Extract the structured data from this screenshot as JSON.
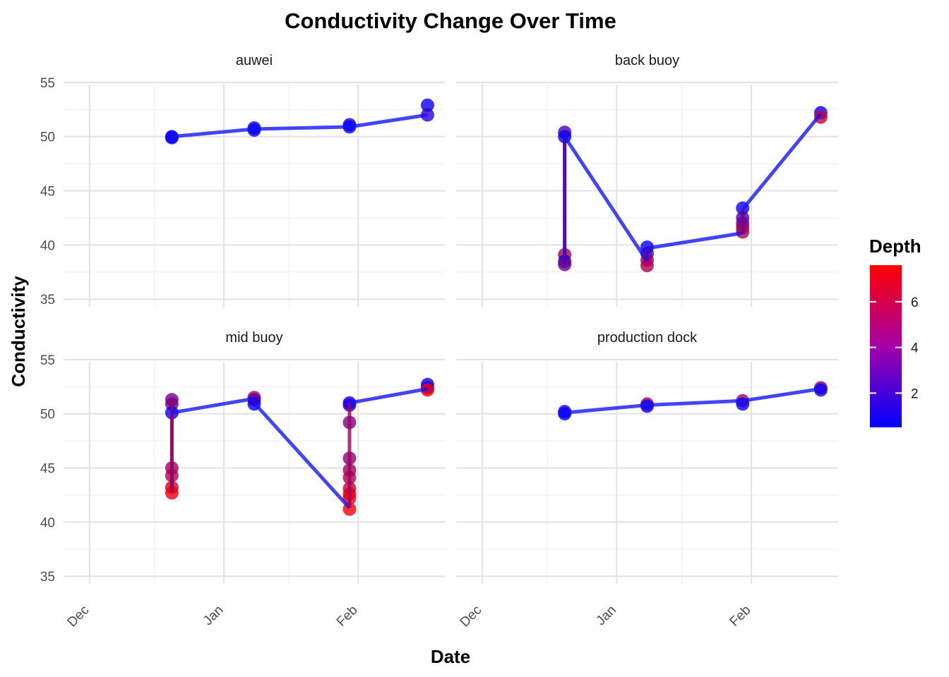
{
  "chart_data": {
    "type": "line",
    "title": "Conductivity Change Over Time",
    "xlabel": "Date",
    "ylabel": "Conductivity",
    "x_ticks": [
      "Dec",
      "Jan",
      "Feb"
    ],
    "y_ticks": [
      35,
      40,
      45,
      50,
      55
    ],
    "ylim": [
      34.3,
      56.1
    ],
    "xlim": [
      "2023-11-25",
      "2024-02-21"
    ],
    "grid": true,
    "color_scale": {
      "name": "Depth",
      "low_color": "#0000ff",
      "high_color": "#ff0000",
      "range": [
        0.5,
        7.6
      ],
      "ticks": [
        2,
        4,
        6
      ]
    },
    "panels": [
      {
        "name": "auwei",
        "line": [
          {
            "date": "2023-12-20",
            "value": 50.0
          },
          {
            "date": "2024-01-08",
            "value": 50.7
          },
          {
            "date": "2024-01-30",
            "value": 50.9
          },
          {
            "date": "2024-02-17",
            "value": 52.0
          }
        ],
        "points": [
          {
            "date": "2023-12-20",
            "value": 50.0,
            "depth": 0.7
          },
          {
            "date": "2023-12-20",
            "value": 49.9,
            "depth": 0.6
          },
          {
            "date": "2024-01-08",
            "value": 50.8,
            "depth": 0.9
          },
          {
            "date": "2024-01-08",
            "value": 50.6,
            "depth": 0.7
          },
          {
            "date": "2024-01-30",
            "value": 51.1,
            "depth": 1.2
          },
          {
            "date": "2024-01-30",
            "value": 50.9,
            "depth": 0.7
          },
          {
            "date": "2024-02-17",
            "value": 52.9,
            "depth": 0.9
          },
          {
            "date": "2024-02-17",
            "value": 52.0,
            "depth": 1.8
          }
        ]
      },
      {
        "name": "back buoy",
        "line": [
          {
            "date": "2023-12-20",
            "value": 50.0
          },
          {
            "date": "2023-12-20",
            "value": 38.3
          },
          {
            "date": "2023-12-20",
            "value": 50.0
          },
          {
            "date": "2024-01-08",
            "value": 38.5
          },
          {
            "date": "2024-01-08",
            "value": 39.7
          },
          {
            "date": "2024-01-30",
            "value": 41.1
          },
          {
            "date": "2024-01-30",
            "value": 43.3
          },
          {
            "date": "2024-02-17",
            "value": 52.1
          }
        ],
        "points": [
          {
            "date": "2023-12-20",
            "value": 50.4,
            "depth": 2.6
          },
          {
            "date": "2023-12-20",
            "value": 50.0,
            "depth": 0.7
          },
          {
            "date": "2023-12-20",
            "value": 39.1,
            "depth": 4.8
          },
          {
            "date": "2023-12-20",
            "value": 38.5,
            "depth": 1.6
          },
          {
            "date": "2023-12-20",
            "value": 38.2,
            "depth": 3.6
          },
          {
            "date": "2024-01-08",
            "value": 39.8,
            "depth": 0.8
          },
          {
            "date": "2024-01-08",
            "value": 39.2,
            "depth": 1.5
          },
          {
            "date": "2024-01-08",
            "value": 38.6,
            "depth": 4.6
          },
          {
            "date": "2024-01-08",
            "value": 38.1,
            "depth": 5.4
          },
          {
            "date": "2024-01-30",
            "value": 43.4,
            "depth": 0.8
          },
          {
            "date": "2024-01-30",
            "value": 42.5,
            "depth": 2.5
          },
          {
            "date": "2024-01-30",
            "value": 42.0,
            "depth": 3.5
          },
          {
            "date": "2024-01-30",
            "value": 41.6,
            "depth": 4.3
          },
          {
            "date": "2024-01-30",
            "value": 41.2,
            "depth": 5.5
          },
          {
            "date": "2024-02-17",
            "value": 52.2,
            "depth": 0.8
          },
          {
            "date": "2024-02-17",
            "value": 51.8,
            "depth": 6.0
          }
        ]
      },
      {
        "name": "mid buoy",
        "line": [
          {
            "date": "2023-12-20",
            "value": 51.2
          },
          {
            "date": "2023-12-20",
            "value": 42.8
          },
          {
            "date": "2023-12-20",
            "value": 50.1
          },
          {
            "date": "2024-01-08",
            "value": 51.4
          },
          {
            "date": "2024-01-08",
            "value": 51.0
          },
          {
            "date": "2024-01-30",
            "value": 41.3
          },
          {
            "date": "2024-01-30",
            "value": 51.0
          },
          {
            "date": "2024-02-17",
            "value": 52.3
          }
        ],
        "points": [
          {
            "date": "2023-12-20",
            "value": 51.3,
            "depth": 3.6
          },
          {
            "date": "2023-12-20",
            "value": 50.9,
            "depth": 4.0
          },
          {
            "date": "2023-12-20",
            "value": 50.1,
            "depth": 0.7
          },
          {
            "date": "2023-12-20",
            "value": 45.0,
            "depth": 5.0
          },
          {
            "date": "2023-12-20",
            "value": 44.3,
            "depth": 5.6
          },
          {
            "date": "2023-12-20",
            "value": 43.2,
            "depth": 6.4
          },
          {
            "date": "2023-12-20",
            "value": 42.7,
            "depth": 7.2
          },
          {
            "date": "2024-01-08",
            "value": 51.5,
            "depth": 5.2
          },
          {
            "date": "2024-01-08",
            "value": 51.3,
            "depth": 3.0
          },
          {
            "date": "2024-01-08",
            "value": 50.9,
            "depth": 0.8
          },
          {
            "date": "2024-01-30",
            "value": 51.0,
            "depth": 0.8
          },
          {
            "date": "2024-01-30",
            "value": 50.8,
            "depth": 1.6
          },
          {
            "date": "2024-01-30",
            "value": 49.2,
            "depth": 4.0
          },
          {
            "date": "2024-01-30",
            "value": 45.9,
            "depth": 4.5
          },
          {
            "date": "2024-01-30",
            "value": 44.8,
            "depth": 5.0
          },
          {
            "date": "2024-01-30",
            "value": 44.1,
            "depth": 5.4
          },
          {
            "date": "2024-01-30",
            "value": 43.1,
            "depth": 6.0
          },
          {
            "date": "2024-01-30",
            "value": 42.6,
            "depth": 6.6
          },
          {
            "date": "2024-01-30",
            "value": 42.2,
            "depth": 7.0
          },
          {
            "date": "2024-01-30",
            "value": 41.2,
            "depth": 7.5
          },
          {
            "date": "2024-02-17",
            "value": 52.7,
            "depth": 0.7
          },
          {
            "date": "2024-02-17",
            "value": 52.4,
            "depth": 1.4
          },
          {
            "date": "2024-02-17",
            "value": 52.2,
            "depth": 7.2
          }
        ]
      },
      {
        "name": "production dock",
        "line": [
          {
            "date": "2023-12-20",
            "value": 50.1
          },
          {
            "date": "2024-01-08",
            "value": 50.8
          },
          {
            "date": "2024-01-30",
            "value": 51.2
          },
          {
            "date": "2024-02-17",
            "value": 52.3
          }
        ],
        "points": [
          {
            "date": "2023-12-20",
            "value": 50.2,
            "depth": 0.8
          },
          {
            "date": "2023-12-20",
            "value": 50.0,
            "depth": 0.6
          },
          {
            "date": "2024-01-08",
            "value": 50.9,
            "depth": 5.0
          },
          {
            "date": "2024-01-08",
            "value": 50.7,
            "depth": 0.7
          },
          {
            "date": "2024-01-30",
            "value": 51.2,
            "depth": 5.2
          },
          {
            "date": "2024-01-30",
            "value": 50.9,
            "depth": 0.8
          },
          {
            "date": "2024-02-17",
            "value": 52.4,
            "depth": 4.5
          },
          {
            "date": "2024-02-17",
            "value": 52.2,
            "depth": 0.8
          }
        ]
      }
    ]
  }
}
